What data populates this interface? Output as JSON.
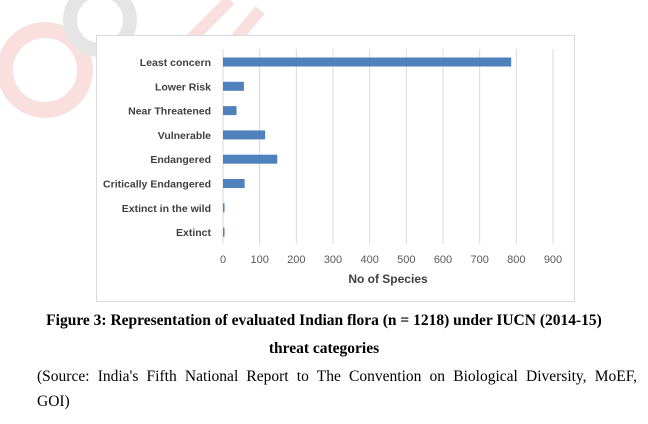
{
  "chart_data": {
    "type": "bar",
    "orientation": "horizontal",
    "categories": [
      "Least concern",
      "Lower Risk",
      "Near Threatened",
      "Vulnerable",
      "Endangered",
      "Critically Endangered",
      "Extinct in the wild",
      "Extinct"
    ],
    "values": [
      786,
      57,
      37,
      115,
      148,
      59,
      2,
      4
    ],
    "xlabel": "No of Species",
    "ylabel": "",
    "xlim": [
      0,
      900
    ],
    "xticks": [
      0,
      100,
      200,
      300,
      400,
      500,
      600,
      700,
      800,
      900
    ],
    "grid": true,
    "bar_color": "#4f81bd"
  },
  "caption": {
    "line1": "Figure 3: Representation of evaluated Indian flora (n = 1218) under IUCN (2014-15)",
    "line2": "threat categories"
  },
  "source": {
    "line1": "(Source: India's Fifth National Report to The Convention on Biological Diversity, MoEF,",
    "line2": "GOI)"
  }
}
